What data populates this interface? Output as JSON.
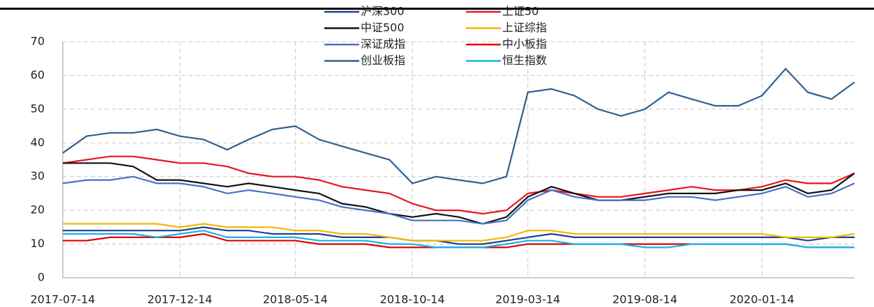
{
  "chart_data": {
    "type": "line",
    "x": [
      "2017-07-14",
      "2017-08-14",
      "2017-09-14",
      "2017-10-14",
      "2017-11-14",
      "2017-12-14",
      "2018-01-14",
      "2018-02-14",
      "2018-03-14",
      "2018-04-14",
      "2018-05-14",
      "2018-06-14",
      "2018-07-14",
      "2018-08-14",
      "2018-09-14",
      "2018-10-14",
      "2018-11-14",
      "2018-12-14",
      "2019-01-14",
      "2019-02-14",
      "2019-03-14",
      "2019-04-14",
      "2019-05-14",
      "2019-06-14",
      "2019-07-14",
      "2019-08-14",
      "2019-09-14",
      "2019-10-14",
      "2019-11-14",
      "2019-12-14",
      "2020-01-14",
      "2020-02-14",
      "2020-03-14",
      "2020-04-14",
      "2020-05-14"
    ],
    "xlim": [
      "2017-07-14",
      "2020-05-14"
    ],
    "xticks": [
      "2017-07-14",
      "2017-12-14",
      "2018-05-14",
      "2018-10-14",
      "2019-03-14",
      "2019-08-14",
      "2020-01-14"
    ],
    "ylim": [
      0,
      70
    ],
    "yticks": [
      0,
      10,
      20,
      30,
      40,
      50,
      60,
      70
    ],
    "grid": true,
    "series": [
      {
        "name": "沪深300",
        "color": "#1f3f8f",
        "values": [
          14,
          14,
          14,
          14,
          14,
          14,
          15,
          14,
          14,
          13,
          13,
          13,
          12,
          12,
          12,
          11,
          11,
          10,
          10,
          11,
          12,
          13,
          12,
          12,
          12,
          12,
          12,
          12,
          12,
          12,
          12,
          12,
          11,
          12,
          12
        ]
      },
      {
        "name": "上证50",
        "color": "#e8141b",
        "values": [
          34,
          35,
          36,
          36,
          35,
          34,
          34,
          33,
          31,
          30,
          30,
          29,
          27,
          26,
          25,
          22,
          20,
          20,
          19,
          20,
          25,
          26,
          25,
          24,
          24,
          25,
          26,
          27,
          26,
          26,
          27,
          29,
          28,
          28,
          31
        ]
      },
      {
        "name": "中证500",
        "color": "#111111",
        "values": [
          34,
          34,
          34,
          33,
          29,
          29,
          28,
          27,
          28,
          27,
          26,
          25,
          22,
          21,
          19,
          18,
          19,
          18,
          16,
          18,
          24,
          27,
          25,
          23,
          23,
          24,
          25,
          25,
          25,
          26,
          26,
          28,
          25,
          26,
          31
        ]
      },
      {
        "name": "上证综指",
        "color": "#f2b800",
        "values": [
          16,
          16,
          16,
          16,
          16,
          15,
          16,
          15,
          15,
          15,
          14,
          14,
          13,
          13,
          12,
          11,
          11,
          11,
          11,
          12,
          14,
          14,
          13,
          13,
          13,
          13,
          13,
          13,
          13,
          13,
          13,
          12,
          12,
          12,
          13
        ]
      },
      {
        "name": "深证成指",
        "color": "#4a6fc6",
        "values": [
          28,
          29,
          29,
          30,
          28,
          28,
          27,
          25,
          26,
          25,
          24,
          23,
          21,
          20,
          19,
          17,
          17,
          17,
          16,
          17,
          23,
          26,
          24,
          23,
          23,
          23,
          24,
          24,
          23,
          24,
          25,
          27,
          24,
          25,
          28
        ]
      },
      {
        "name": "中小板指",
        "color": "#e00000",
        "values": [
          11,
          11,
          12,
          12,
          12,
          12,
          13,
          11,
          11,
          11,
          11,
          10,
          10,
          10,
          9,
          9,
          9,
          9,
          9,
          9,
          10,
          10,
          10,
          10,
          10,
          10,
          10,
          10,
          10,
          10,
          10,
          10,
          9,
          9,
          9
        ]
      },
      {
        "name": "创业板指",
        "color": "#2e5f8f",
        "values": [
          37,
          42,
          43,
          43,
          44,
          42,
          41,
          38,
          41,
          44,
          45,
          41,
          39,
          37,
          35,
          28,
          30,
          29,
          28,
          30,
          55,
          56,
          54,
          50,
          48,
          50,
          55,
          53,
          51,
          51,
          54,
          62,
          55,
          53,
          58
        ]
      },
      {
        "name": "恒生指数",
        "color": "#13b4ea",
        "values": [
          13,
          13,
          13,
          13,
          12,
          13,
          14,
          12,
          12,
          12,
          12,
          11,
          11,
          11,
          10,
          10,
          9,
          9,
          9,
          10,
          11,
          11,
          10,
          10,
          10,
          9,
          9,
          10,
          10,
          10,
          10,
          10,
          9,
          9,
          9
        ]
      }
    ]
  }
}
